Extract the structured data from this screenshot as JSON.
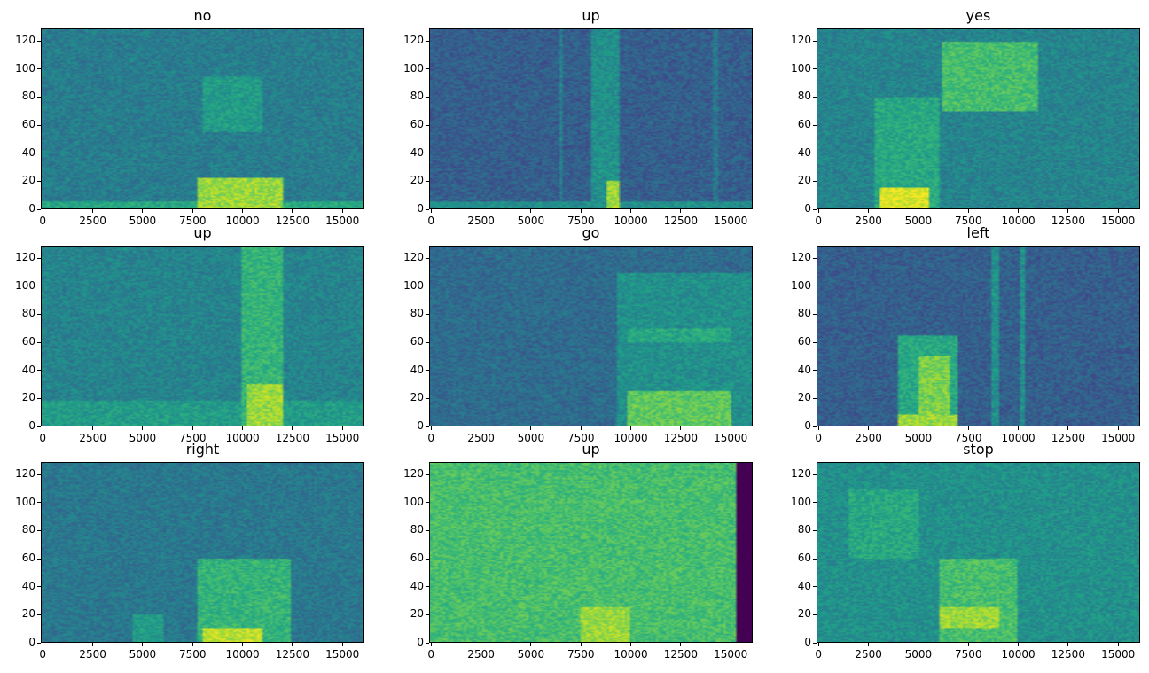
{
  "chart_data": [
    {
      "type": "heatmap",
      "title": "no",
      "colormap": "viridis",
      "xlim": [
        -100,
        16100
      ],
      "ylim": [
        0,
        129
      ],
      "xticks": [
        "0",
        "2500",
        "5000",
        "7500",
        "10000",
        "12500",
        "15000"
      ],
      "yticks": [
        "0",
        "20",
        "40",
        "60",
        "80",
        "100",
        "120"
      ]
    },
    {
      "type": "heatmap",
      "title": "up",
      "colormap": "viridis",
      "xlim": [
        -100,
        16100
      ],
      "ylim": [
        0,
        129
      ],
      "xticks": [
        "0",
        "2500",
        "5000",
        "7500",
        "10000",
        "12500",
        "15000"
      ],
      "yticks": [
        "0",
        "20",
        "40",
        "60",
        "80",
        "100",
        "120"
      ]
    },
    {
      "type": "heatmap",
      "title": "yes",
      "colormap": "viridis",
      "xlim": [
        -100,
        16100
      ],
      "ylim": [
        0,
        129
      ],
      "xticks": [
        "0",
        "2500",
        "5000",
        "7500",
        "10000",
        "12500",
        "15000"
      ],
      "yticks": [
        "0",
        "20",
        "40",
        "60",
        "80",
        "100",
        "120"
      ]
    },
    {
      "type": "heatmap",
      "title": "up",
      "colormap": "viridis",
      "xlim": [
        -100,
        16100
      ],
      "ylim": [
        0,
        129
      ],
      "xticks": [
        "0",
        "2500",
        "5000",
        "7500",
        "10000",
        "12500",
        "15000"
      ],
      "yticks": [
        "0",
        "20",
        "40",
        "60",
        "80",
        "100",
        "120"
      ]
    },
    {
      "type": "heatmap",
      "title": "go",
      "colormap": "viridis",
      "xlim": [
        -100,
        16100
      ],
      "ylim": [
        0,
        129
      ],
      "xticks": [
        "0",
        "2500",
        "5000",
        "7500",
        "10000",
        "12500",
        "15000"
      ],
      "yticks": [
        "0",
        "20",
        "40",
        "60",
        "80",
        "100",
        "120"
      ]
    },
    {
      "type": "heatmap",
      "title": "left",
      "colormap": "viridis",
      "xlim": [
        -100,
        16100
      ],
      "ylim": [
        0,
        129
      ],
      "xticks": [
        "0",
        "2500",
        "5000",
        "7500",
        "10000",
        "12500",
        "15000"
      ],
      "yticks": [
        "0",
        "20",
        "40",
        "60",
        "80",
        "100",
        "120"
      ]
    },
    {
      "type": "heatmap",
      "title": "right",
      "colormap": "viridis",
      "xlim": [
        -100,
        16100
      ],
      "ylim": [
        0,
        129
      ],
      "xticks": [
        "0",
        "2500",
        "5000",
        "7500",
        "10000",
        "12500",
        "15000"
      ],
      "yticks": [
        "0",
        "20",
        "40",
        "60",
        "80",
        "100",
        "120"
      ]
    },
    {
      "type": "heatmap",
      "title": "up",
      "colormap": "viridis",
      "xlim": [
        -100,
        16100
      ],
      "ylim": [
        0,
        129
      ],
      "xticks": [
        "0",
        "2500",
        "5000",
        "7500",
        "10000",
        "12500",
        "15000"
      ],
      "yticks": [
        "0",
        "20",
        "40",
        "60",
        "80",
        "100",
        "120"
      ]
    },
    {
      "type": "heatmap",
      "title": "stop",
      "colormap": "viridis",
      "xlim": [
        -100,
        16100
      ],
      "ylim": [
        0,
        129
      ],
      "xticks": [
        "0",
        "2500",
        "5000",
        "7500",
        "10000",
        "12500",
        "15000"
      ],
      "yticks": [
        "0",
        "20",
        "40",
        "60",
        "80",
        "100",
        "120"
      ]
    }
  ]
}
